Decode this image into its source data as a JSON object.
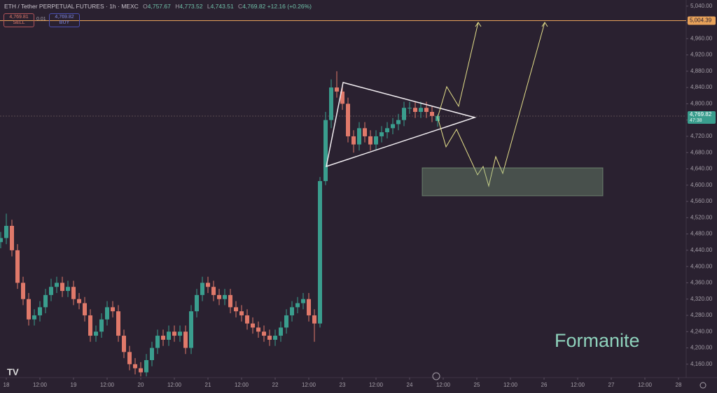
{
  "header": {
    "symbol": "ETH / Tether PERPETUAL FUTURES · 1h · MEXC",
    "ohlc": [
      {
        "key": "O",
        "value": "4,757.67"
      },
      {
        "key": "H",
        "value": "4,773.52"
      },
      {
        "key": "L",
        "value": "4,743.51"
      },
      {
        "key": "C",
        "value": "4,769.82"
      }
    ],
    "change": "+12.16 (+0.26%)"
  },
  "trade": {
    "sell_price": "4,769.81",
    "sell": "SELL",
    "spread": "0.01",
    "buy_price": "4,769.82",
    "buy": "BUY"
  },
  "watermark": "Formanite",
  "chart_data": {
    "type": "candlestick",
    "x": [
      -2,
      0,
      2,
      4,
      6,
      8,
      10,
      12,
      14,
      16,
      18,
      20,
      22,
      24,
      26,
      28,
      30,
      32,
      34,
      36,
      38,
      40,
      42,
      44,
      46,
      48,
      50,
      52,
      54,
      56,
      58,
      60,
      62,
      64,
      66,
      68,
      70,
      72,
      74,
      76,
      78,
      80,
      82,
      84,
      86,
      88,
      90,
      92,
      94,
      96,
      98,
      100,
      102,
      104,
      106,
      108,
      110,
      112,
      114,
      116,
      118,
      120,
      122,
      124,
      126,
      128,
      130,
      132,
      134,
      136,
      138,
      140,
      142,
      144,
      146,
      148,
      150,
      152,
      154
    ],
    "open": [
      4460,
      4470,
      4500,
      4440,
      4360,
      4320,
      4270,
      4280,
      4300,
      4330,
      4350,
      4360,
      4340,
      4350,
      4320,
      4310,
      4280,
      4230,
      4240,
      4270,
      4300,
      4290,
      4230,
      4190,
      4160,
      4150,
      4140,
      4170,
      4200,
      4230,
      4220,
      4240,
      4230,
      4240,
      4200,
      4290,
      4330,
      4360,
      4350,
      4330,
      4320,
      4330,
      4300,
      4290,
      4280,
      4260,
      4250,
      4240,
      4230,
      4220,
      4230,
      4250,
      4280,
      4300,
      4310,
      4320,
      4280,
      4260,
      4610,
      4760,
      4840,
      4830,
      4800,
      4720,
      4700,
      4740,
      4720,
      4700,
      4720,
      4730,
      4740,
      4750,
      4760,
      4790,
      4790,
      4780,
      4790,
      4780,
      4757.67
    ],
    "high": [
      4485,
      4530,
      4515,
      4455,
      4375,
      4335,
      4295,
      4315,
      4345,
      4370,
      4375,
      4375,
      4365,
      4365,
      4335,
      4325,
      4295,
      4255,
      4285,
      4315,
      4315,
      4305,
      4245,
      4205,
      4175,
      4165,
      4185,
      4215,
      4245,
      4245,
      4255,
      4255,
      4255,
      4255,
      4305,
      4345,
      4375,
      4375,
      4365,
      4345,
      4345,
      4345,
      4315,
      4305,
      4295,
      4275,
      4265,
      4255,
      4245,
      4245,
      4265,
      4295,
      4315,
      4325,
      4335,
      4335,
      4295,
      4620,
      4780,
      4860,
      4880,
      4845,
      4815,
      4735,
      4755,
      4755,
      4735,
      4735,
      4745,
      4755,
      4765,
      4775,
      4805,
      4805,
      4805,
      4805,
      4805,
      4795,
      4773.52
    ],
    "low": [
      4445,
      4455,
      4425,
      4345,
      4305,
      4255,
      4255,
      4265,
      4285,
      4315,
      4335,
      4325,
      4325,
      4305,
      4295,
      4265,
      4215,
      4215,
      4225,
      4255,
      4275,
      4215,
      4175,
      4145,
      4135,
      4130,
      4130,
      4155,
      4185,
      4205,
      4205,
      4215,
      4215,
      4185,
      4185,
      4275,
      4315,
      4335,
      4315,
      4305,
      4305,
      4285,
      4275,
      4265,
      4245,
      4235,
      4225,
      4215,
      4205,
      4205,
      4215,
      4235,
      4265,
      4285,
      4295,
      4265,
      4215,
      4250,
      4600,
      4740,
      4815,
      4785,
      4705,
      4680,
      4685,
      4705,
      4685,
      4685,
      4705,
      4715,
      4725,
      4735,
      4745,
      4775,
      4765,
      4765,
      4765,
      4755,
      4743.51
    ],
    "close": [
      4470,
      4500,
      4440,
      4360,
      4320,
      4270,
      4280,
      4300,
      4330,
      4350,
      4360,
      4340,
      4350,
      4320,
      4310,
      4280,
      4230,
      4240,
      4270,
      4300,
      4290,
      4230,
      4190,
      4160,
      4150,
      4140,
      4170,
      4200,
      4230,
      4220,
      4240,
      4230,
      4240,
      4200,
      4290,
      4330,
      4360,
      4350,
      4330,
      4320,
      4330,
      4300,
      4290,
      4280,
      4260,
      4250,
      4240,
      4230,
      4220,
      4230,
      4250,
      4280,
      4300,
      4310,
      4320,
      4280,
      4260,
      4610,
      4760,
      4840,
      4830,
      4800,
      4720,
      4700,
      4740,
      4720,
      4700,
      4720,
      4730,
      4740,
      4750,
      4760,
      4790,
      4790,
      4780,
      4790,
      4780,
      4770,
      4769.82
    ],
    "up_color": "#3a9e8e",
    "down_color": "#e0796a",
    "xlim": [
      -2.25,
      242.75
    ],
    "ylim": [
      4127,
      5055
    ],
    "xticks": [
      {
        "value": 0,
        "label": "18"
      },
      {
        "value": 12,
        "label": "12:00"
      },
      {
        "value": 24,
        "label": "19"
      },
      {
        "value": 36,
        "label": "12:00"
      },
      {
        "value": 48,
        "label": "20"
      },
      {
        "value": 60,
        "label": "12:00"
      },
      {
        "value": 72,
        "label": "21"
      },
      {
        "value": 84,
        "label": "12:00"
      },
      {
        "value": 96,
        "label": "22"
      },
      {
        "value": 108,
        "label": "12:00"
      },
      {
        "value": 120,
        "label": "23"
      },
      {
        "value": 132,
        "label": "12:00"
      },
      {
        "value": 144,
        "label": "24"
      },
      {
        "value": 156,
        "label": "12:00"
      },
      {
        "value": 168,
        "label": "25"
      },
      {
        "value": 180,
        "label": "12:00"
      },
      {
        "value": 192,
        "label": "26"
      },
      {
        "value": 204,
        "label": "12:00"
      },
      {
        "value": 216,
        "label": "27"
      },
      {
        "value": 228,
        "label": "12:00"
      },
      {
        "value": 240,
        "label": "28"
      }
    ],
    "yticks": [
      {
        "value": 4160,
        "label": "4,160.00"
      },
      {
        "value": 4200,
        "label": "4,200.00"
      },
      {
        "value": 4240,
        "label": "4,240.00"
      },
      {
        "value": 4280,
        "label": "4,280.00"
      },
      {
        "value": 4320,
        "label": "4,320.00"
      },
      {
        "value": 4360,
        "label": "4,360.00"
      },
      {
        "value": 4400,
        "label": "4,400.00"
      },
      {
        "value": 4440,
        "label": "4,440.00"
      },
      {
        "value": 4480,
        "label": "4,480.00"
      },
      {
        "value": 4520,
        "label": "4,520.00"
      },
      {
        "value": 4560,
        "label": "4,560.00"
      },
      {
        "value": 4600,
        "label": "4,600.00"
      },
      {
        "value": 4640,
        "label": "4,640.00"
      },
      {
        "value": 4680,
        "label": "4,680.00"
      },
      {
        "value": 4720,
        "label": "4,720.00"
      },
      {
        "value": 4760,
        "label": "4,760.00"
      },
      {
        "value": 4800,
        "label": "4,800.00"
      },
      {
        "value": 4840,
        "label": "4,840.00"
      },
      {
        "value": 4880,
        "label": "4,880.00"
      },
      {
        "value": 4920,
        "label": "4,920.00"
      },
      {
        "value": 4960,
        "label": "4,960.00"
      },
      {
        "value": 5000,
        "label": "5,000.00"
      },
      {
        "value": 5040,
        "label": "5,040.00"
      }
    ],
    "price_line": {
      "value": 5004.39,
      "label": "5,004.39",
      "color": "#e8a25a"
    },
    "last_price": {
      "value": 4769.82,
      "label": "4,769.82"
    },
    "countdown": "47:38"
  }
}
